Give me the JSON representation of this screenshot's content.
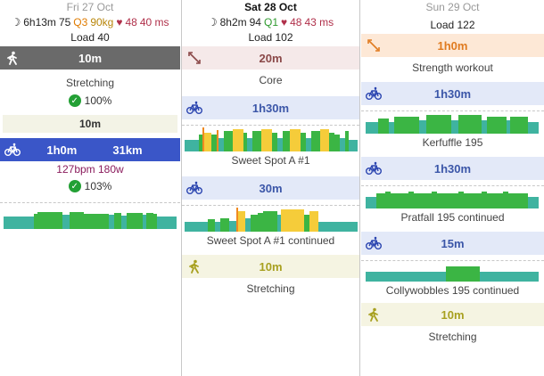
{
  "days": [
    {
      "date": "Fri 27 Oct",
      "sleep": "6h13m",
      "hrv": "75",
      "quality": "Q3",
      "weight": "90kg",
      "rest_hr": "48",
      "hrv_ms": "40 ms",
      "load": "Load 40",
      "workouts": [
        {
          "sport": "walk",
          "duration": "10m",
          "title": "Stretching",
          "compliance": "100%"
        },
        {
          "sport": "bike",
          "duration": "1h0m",
          "distance": "31km",
          "hr_power": "127bpm 180w",
          "compliance": "103%",
          "band_label": "10m"
        }
      ]
    },
    {
      "date": "Sat 28 Oct",
      "sleep": "8h2m",
      "hrv": "94",
      "quality": "Q1",
      "rest_hr": "48",
      "hrv_ms": "43 ms",
      "load": "Load 102",
      "workouts": [
        {
          "sport": "strength",
          "duration": "20m",
          "title": "Core"
        },
        {
          "sport": "bike",
          "duration": "1h30m",
          "title": "Sweet Spot A #1"
        },
        {
          "sport": "bike",
          "duration": "30m",
          "title": "Sweet Spot A #1 continued"
        },
        {
          "sport": "walk",
          "duration": "10m",
          "title": "Stretching"
        }
      ]
    },
    {
      "date": "Sun 29 Oct",
      "load": "Load 122",
      "workouts": [
        {
          "sport": "strength",
          "duration": "1h0m",
          "title": "Strength workout"
        },
        {
          "sport": "bike",
          "duration": "1h30m",
          "title": "Kerfuffle 195"
        },
        {
          "sport": "bike",
          "duration": "1h30m",
          "title": "Pratfall 195 continued"
        },
        {
          "sport": "bike",
          "duration": "15m",
          "title": "Collywobbles 195 continued"
        },
        {
          "sport": "walk",
          "duration": "10m",
          "title": "Stretching"
        }
      ]
    }
  ],
  "icons": {
    "sleep": "moon-icon",
    "heart": "heart-icon",
    "bike": "bike-icon",
    "walk": "walk-icon",
    "strength": "strength-icon",
    "check": "check-icon"
  },
  "colors": {
    "zone_teal": "#3fb3a0",
    "zone_green": "#3bb544",
    "zone_yellow": "#f5cc3a",
    "zone_orange": "#f08a20",
    "bike_band_solid": "#3a56c8"
  }
}
